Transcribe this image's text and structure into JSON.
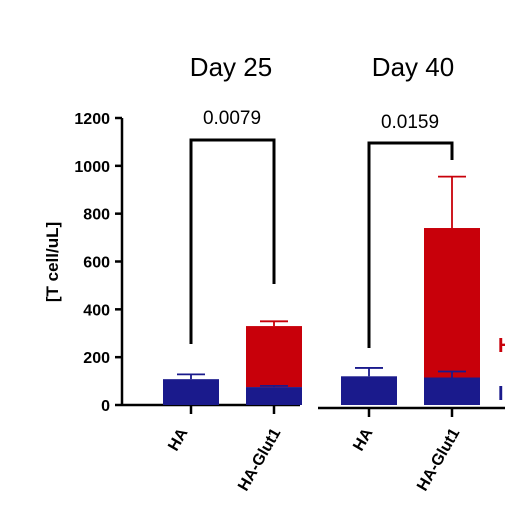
{
  "chart_data": {
    "type": "bar",
    "stacked": true,
    "title": "",
    "xlabel": "",
    "ylabel": "[T cell/uL]",
    "ylim": [
      0,
      1200
    ],
    "yticks": [
      0,
      200,
      400,
      600,
      800,
      1000,
      1200
    ],
    "groups": [
      {
        "title": "Day 25",
        "p_value": "0.0079",
        "categories": [
          "HA",
          "HA-Glut1"
        ],
        "segments": [
          {
            "color": "#1a1a8c",
            "values": [
              108,
              75
            ],
            "errors": [
              20,
              5
            ]
          },
          {
            "color": "#c8000a",
            "values": [
              0,
              255
            ],
            "errors": [
              0,
              20
            ]
          }
        ]
      },
      {
        "title": "Day 40",
        "p_value": "0.0159",
        "categories": [
          "HA",
          "HA-Glut1"
        ],
        "segments": [
          {
            "color": "#1a1a8c",
            "values": [
              120,
              115
            ],
            "errors": [
              35,
              25
            ]
          },
          {
            "color": "#c8000a",
            "values": [
              0,
              625
            ],
            "errors": [
              0,
              215
            ]
          }
        ]
      }
    ],
    "legend": {
      "placement": "right",
      "entries": [
        {
          "label": "H",
          "color": "#c8000a"
        },
        {
          "label": "I",
          "color": "#1a1a8c"
        }
      ]
    }
  }
}
